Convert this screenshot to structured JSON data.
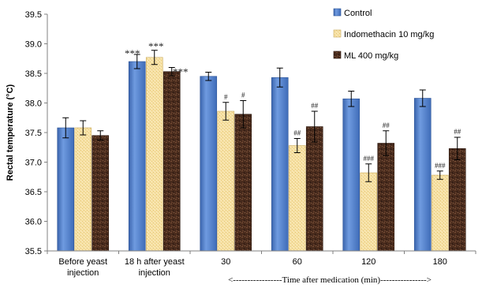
{
  "chart_data": {
    "type": "bar",
    "title": "",
    "ylabel": "Rectal temperature (°C)",
    "xlabel": "<-----------------Time after medication (min)---------------->",
    "ylim": [
      35.5,
      39.5
    ],
    "yticks": [
      "35.5",
      "36.0",
      "36.5",
      "37.0",
      "37.5",
      "38.0",
      "38.5",
      "39.0",
      "39.5"
    ],
    "categories": [
      [
        "Before yeast",
        "injection"
      ],
      [
        "18 h after yeast",
        "injection"
      ],
      [
        "30"
      ],
      [
        "60"
      ],
      [
        "120"
      ],
      [
        "180"
      ]
    ],
    "legend_position": "top-right",
    "grid": false,
    "series": [
      {
        "name": "Control",
        "color": "#4a7bc6",
        "values": [
          37.58,
          38.7,
          38.45,
          38.43,
          38.07,
          38.08
        ],
        "errors": [
          0.17,
          0.12,
          0.07,
          0.16,
          0.13,
          0.14
        ],
        "annotations": [
          "",
          "***",
          "",
          "",
          "",
          ""
        ]
      },
      {
        "name": "Indomethacin 10 mg/kg",
        "color": "#f5dc9b",
        "values": [
          37.58,
          38.77,
          37.86,
          37.28,
          36.82,
          36.78
        ],
        "errors": [
          0.12,
          0.12,
          0.15,
          0.12,
          0.15,
          0.07
        ],
        "annotations": [
          "",
          "***",
          "#",
          "##",
          "###",
          "###"
        ]
      },
      {
        "name": "ML 400 mg/kg",
        "color": "#4d2f20",
        "values": [
          37.45,
          38.53,
          37.81,
          37.6,
          37.32,
          37.23
        ],
        "errors": [
          0.08,
          0.07,
          0.23,
          0.26,
          0.21,
          0.19
        ],
        "annotations": [
          "",
          "***",
          "#",
          "##",
          "##",
          "##"
        ]
      }
    ]
  }
}
